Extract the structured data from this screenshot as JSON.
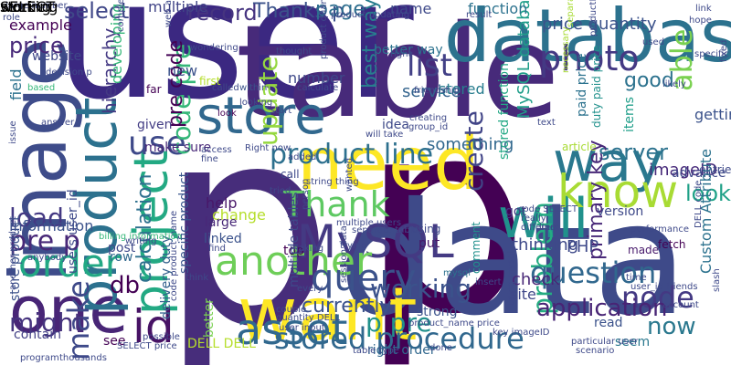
{
  "words": [
    {
      "text": "p",
      "color": "#472d7b"
    },
    {
      "text": "p",
      "color": "#440154"
    },
    {
      "text": "user",
      "color": "#3b2881"
    },
    {
      "text": "table",
      "color": "#472a7a"
    },
    {
      "text": "data",
      "color": "#3e4a89"
    },
    {
      "text": "database",
      "color": "#2c728e"
    },
    {
      "text": "image",
      "color": "#3e4c8a"
    },
    {
      "text": "need",
      "color": "#fde725"
    },
    {
      "text": "want",
      "color": "#fde725"
    },
    {
      "text": "one",
      "color": "#482576"
    },
    {
      "text": "store",
      "color": "#31688e"
    },
    {
      "text": "product",
      "color": "#2c718e"
    },
    {
      "text": "project",
      "color": "#23a983"
    },
    {
      "text": "MySQL",
      "color": "#443a83"
    },
    {
      "text": "will",
      "color": "#21918c"
    },
    {
      "text": "way",
      "color": "#2a788e"
    },
    {
      "text": "know",
      "color": "#a8db34"
    },
    {
      "text": "another",
      "color": "#6ece58"
    },
    {
      "text": "query",
      "color": "#3b528b"
    },
    {
      "text": "order",
      "color": "#22a884"
    },
    {
      "text": "asset",
      "color": "#31688e"
    },
    {
      "text": "stored procedure",
      "color": "#31688e"
    },
    {
      "text": "id",
      "color": "#471365"
    },
    {
      "text": "Thank",
      "color": "#5ec962"
    },
    {
      "text": "use",
      "color": "#3e4989"
    },
    {
      "text": "update",
      "color": "#95d840"
    },
    {
      "text": "code pre",
      "color": "#35b779"
    },
    {
      "text": "photo",
      "color": "#443983"
    },
    {
      "text": "able",
      "color": "#7ad151"
    },
    {
      "text": "list",
      "color": "#424086"
    },
    {
      "text": "record",
      "color": "#463480"
    },
    {
      "text": "select",
      "color": "#3f4788"
    },
    {
      "text": "price",
      "color": "#482979"
    },
    {
      "text": "Thanks p",
      "color": "#3b528b"
    },
    {
      "text": "page",
      "color": "#2e6e8e"
    },
    {
      "text": "problem",
      "color": "#25ac82"
    },
    {
      "text": "server",
      "color": "#2c728e"
    },
    {
      "text": "question",
      "color": "#31688e"
    },
    {
      "text": "node",
      "color": "#443983"
    },
    {
      "text": "application",
      "color": "#482475"
    },
    {
      "text": "now",
      "color": "#2a788e"
    },
    {
      "text": "working",
      "color": "#3b528b"
    },
    {
      "text": "p pre",
      "color": "#21918c"
    },
    {
      "text": "create",
      "color": "#414487"
    },
    {
      "text": "db",
      "color": "#440154"
    },
    {
      "text": "make",
      "color": "#3e4989"
    },
    {
      "text": "pre p",
      "color": "#482878"
    },
    {
      "text": "load",
      "color": "#443983"
    },
    {
      "text": "might",
      "color": "#46337e"
    },
    {
      "text": "calculation",
      "color": "#2d708e"
    },
    {
      "text": "pre code",
      "color": "#440154"
    },
    {
      "text": "product line",
      "color": "#2d708e"
    },
    {
      "text": "best way",
      "color": "#287d8e"
    },
    {
      "text": "look",
      "color": "#1fa187"
    },
    {
      "text": "currently",
      "color": "#3b528b"
    },
    {
      "text": "MySQL database",
      "color": "#1f9e89"
    },
    {
      "text": "primary key",
      "color": "#482878"
    },
    {
      "text": "good",
      "color": "#2c728e"
    },
    {
      "text": "hierarchy",
      "color": "#443983"
    },
    {
      "text": "imageID",
      "color": "#472a7a"
    },
    {
      "text": "getting",
      "color": "#3b528b"
    },
    {
      "text": "multiple",
      "color": "#414487"
    },
    {
      "text": "name",
      "color": "#3e4989"
    },
    {
      "text": "function",
      "color": "#2c728e"
    },
    {
      "text": "price quantity",
      "color": "#3b528b"
    },
    {
      "text": "service",
      "color": "#33638d"
    },
    {
      "text": "stored",
      "color": "#287d8e"
    },
    {
      "text": "something",
      "color": "#31688e"
    },
    {
      "text": "PHP",
      "color": "#3e4989"
    },
    {
      "text": "thinking",
      "color": "#3e4989"
    },
    {
      "text": "check",
      "color": "#482777"
    },
    {
      "text": "site",
      "color": "#3f4788"
    },
    {
      "text": "example",
      "color": "#440154"
    },
    {
      "text": "field",
      "color": "#2c728e"
    },
    {
      "text": "website",
      "color": "#3f4788"
    },
    {
      "text": "developing",
      "color": "#35b779"
    },
    {
      "text": "number",
      "color": "#3e4989"
    },
    {
      "text": "new",
      "color": "#3b528b"
    },
    {
      "text": "information",
      "color": "#3b528b"
    },
    {
      "text": "contain",
      "color": "#424086"
    },
    {
      "text": "row",
      "color": "#31688e"
    },
    {
      "text": "post",
      "color": "#3e4989"
    },
    {
      "text": "help",
      "color": "#481769"
    },
    {
      "text": "change",
      "color": "#b5de2b"
    },
    {
      "text": "linked",
      "color": "#3b528b"
    },
    {
      "text": "large",
      "color": "#482878"
    },
    {
      "text": "top",
      "color": "#440154"
    },
    {
      "text": "strong",
      "color": "#3b528b"
    },
    {
      "text": "put",
      "color": "#481668"
    },
    {
      "text": "got",
      "color": "#443983"
    },
    {
      "text": "read",
      "color": "#3b528b"
    },
    {
      "text": "seem",
      "color": "#2a788e"
    },
    {
      "text": "made",
      "color": "#481a6c"
    },
    {
      "text": "fetch",
      "color": "#440154"
    },
    {
      "text": "advance",
      "color": "#3e4989"
    },
    {
      "text": "entries",
      "color": "#3e4989"
    },
    {
      "text": "Custom Attribute",
      "color": "#2c728e"
    },
    {
      "text": "version",
      "color": "#3e4989"
    },
    {
      "text": "items",
      "color": "#1f9e89"
    },
    {
      "text": "duty paid price",
      "color": "#21918c"
    },
    {
      "text": "paid price",
      "color": "#2c728e"
    },
    {
      "text": "idea",
      "color": "#3e4989"
    },
    {
      "text": "better way",
      "color": "#2c728e"
    },
    {
      "text": "store product",
      "color": "#3b528b"
    },
    {
      "text": "delivery duty",
      "color": "#34618d"
    },
    {
      "text": "specific product",
      "color": "#39568c"
    },
    {
      "text": "multiple tables",
      "color": "#3e4989"
    },
    {
      "text": "stored function",
      "color": "#22a884"
    },
    {
      "text": "see",
      "color": "#440154"
    },
    {
      "text": "DELL DELL",
      "color": "#b5de2b"
    },
    {
      "text": "right order",
      "color": "#31688e"
    },
    {
      "text": "users user_id",
      "color": "#3e4989"
    },
    {
      "text": "make sure",
      "color": "#482979"
    },
    {
      "text": "given",
      "color": "#433d84"
    },
    {
      "text": "far",
      "color": "#440154"
    },
    {
      "text": "within",
      "color": "#3b528b"
    },
    {
      "text": "start",
      "color": "#3e4989"
    },
    {
      "text": "calculate",
      "color": "#3e4989"
    },
    {
      "text": "look",
      "color": "#440154"
    },
    {
      "text": "using",
      "color": "#3e4989"
    },
    {
      "text": "comment",
      "color": "#21918c"
    },
    {
      "text": "better",
      "color": "#7ad151"
    },
    {
      "text": "call",
      "color": "#3e4989"
    },
    {
      "text": "tried",
      "color": "#3e4989"
    },
    {
      "text": "string",
      "color": "#3e4989"
    },
    {
      "text": "couple",
      "color": "#3e4989"
    },
    {
      "text": "user input",
      "color": "#3e4989"
    },
    {
      "text": "code product_name",
      "color": "#3e4989"
    },
    {
      "text": "mysql",
      "color": "#2c728e"
    },
    {
      "text": "thought",
      "color": "#3e4989"
    },
    {
      "text": "called",
      "color": "#3e4989"
    },
    {
      "text": "first",
      "color": "#b5de2b"
    },
    {
      "text": "looking",
      "color": "#3e4989"
    },
    {
      "text": "wondering",
      "color": "#3e4989"
    },
    {
      "text": "right",
      "color": "#3e4989"
    },
    {
      "text": "result",
      "color": "#3e4989"
    },
    {
      "text": "creating",
      "color": "#3e4989"
    },
    {
      "text": "friendship",
      "color": "#3e4989"
    },
    {
      "text": "group_id",
      "color": "#3e4989"
    },
    {
      "text": "text",
      "color": "#3e4989"
    },
    {
      "text": "article",
      "color": "#a8db34"
    },
    {
      "text": "hope",
      "color": "#3e4989"
    },
    {
      "text": "likely",
      "color": "#3e4989"
    },
    {
      "text": "specific",
      "color": "#3e4989"
    },
    {
      "text": "used",
      "color": "#3e4989"
    },
    {
      "text": "link",
      "color": "#3e4989"
    },
    {
      "text": "fixed",
      "color": "#3e4989"
    },
    {
      "text": "separate page",
      "color": "#a8db34"
    },
    {
      "text": "necessary",
      "color": "#a8db34"
    },
    {
      "text": "productID",
      "color": "#3e4989"
    },
    {
      "text": "product updating",
      "color": "#3e4989"
    },
    {
      "text": "complex join",
      "color": "#3e4989"
    },
    {
      "text": "web application",
      "color": "#3e4989"
    },
    {
      "text": "role",
      "color": "#3e4989"
    },
    {
      "text": "large number",
      "color": "#3e4989"
    },
    {
      "text": "decision p",
      "color": "#3e4989"
    },
    {
      "text": "based",
      "color": "#35b779"
    },
    {
      "text": "answer",
      "color": "#3e4989"
    },
    {
      "text": "issue",
      "color": "#3e4989"
    },
    {
      "text": "billing information",
      "color": "#35b779"
    },
    {
      "text": "anybody",
      "color": "#3e4989"
    },
    {
      "text": "writing",
      "color": "#3e4989"
    },
    {
      "text": "Right now",
      "color": "#3e4989"
    },
    {
      "text": "access",
      "color": "#3e4989"
    },
    {
      "text": "fine",
      "color": "#3e4989"
    },
    {
      "text": "find",
      "color": "#3e4989"
    },
    {
      "text": "think",
      "color": "#3e4989"
    },
    {
      "text": "possible",
      "color": "#3e4989"
    },
    {
      "text": "making",
      "color": "#3e4989"
    },
    {
      "text": "quantity DELL",
      "color": "#3e4989"
    },
    {
      "text": "SELECT price",
      "color": "#3e4989"
    },
    {
      "text": "program",
      "color": "#3e4989"
    },
    {
      "text": "thousands",
      "color": "#3e4989"
    },
    {
      "text": "another product",
      "color": "#3e4989"
    },
    {
      "text": "product quantity",
      "color": "#3e4989"
    },
    {
      "text": "separate table",
      "color": "#3e4989"
    },
    {
      "text": "session data",
      "color": "#3e4989"
    },
    {
      "text": "multiple users",
      "color": "#3e4989"
    },
    {
      "text": "product_name price",
      "color": "#3e4989"
    },
    {
      "text": "table type",
      "color": "#3e4989"
    },
    {
      "text": "insert",
      "color": "#3e4989"
    },
    {
      "text": "using mysql",
      "color": "#3e4989"
    },
    {
      "text": "key imageID",
      "color": "#3e4989"
    },
    {
      "text": "particular user",
      "color": "#3e4989"
    },
    {
      "text": "scenario",
      "color": "#3e4989"
    },
    {
      "text": "done",
      "color": "#3e4989"
    },
    {
      "text": "slash",
      "color": "#3e4989"
    },
    {
      "text": "time",
      "color": "#3e4989"
    },
    {
      "text": "user_id friends",
      "color": "#3e4989"
    },
    {
      "text": "account",
      "color": "#3e4989"
    },
    {
      "text": "DELL code",
      "color": "#3e4989"
    },
    {
      "text": "performance",
      "color": "#3e4989"
    },
    {
      "text": "different",
      "color": "#3e4989"
    },
    {
      "text": "really",
      "color": "#3e4989"
    },
    {
      "text": "code SELECT",
      "color": "#3e4989"
    },
    {
      "text": "line",
      "color": "#3e4989"
    },
    {
      "text": "thing",
      "color": "#3e4989"
    },
    {
      "text": "will take",
      "color": "#3e4989"
    },
    {
      "text": "wanted",
      "color": "#3e4989"
    },
    {
      "text": "trying",
      "color": "#3e4989"
    },
    {
      "text": "person",
      "color": "#3e4989"
    },
    {
      "text": "every",
      "color": "#3e4989"
    },
    {
      "text": "added",
      "color": "#3e4989"
    },
    {
      "text": "storing",
      "color": "#3e4989"
    },
    {
      "text": "SELECT",
      "color": "#3e4989"
    },
    {
      "text": "working",
      "color": "#3e4989"
    }
  ]
}
